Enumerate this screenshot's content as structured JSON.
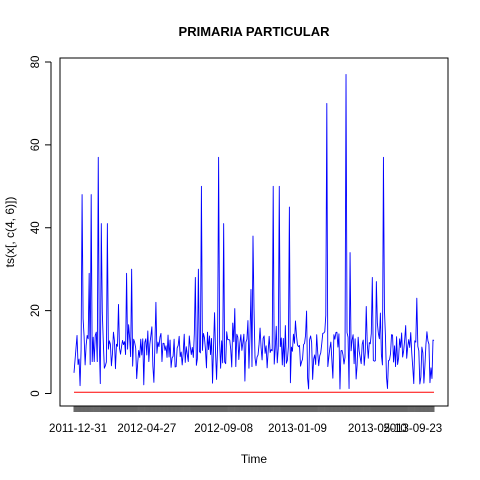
{
  "chart_data": {
    "type": "line",
    "title": "PRIMARIA PARTICULAR",
    "xlabel": "Time",
    "ylabel": "ts(x[, c(4, 6)])",
    "ylim": [
      0,
      80
    ],
    "yticks": [
      0,
      20,
      40,
      60,
      80
    ],
    "xlim": [
      0,
      356
    ],
    "x_tick_labels": [
      {
        "x": 4,
        "label": "2011-12-31"
      },
      {
        "x": 72,
        "label": "2012-04-27"
      },
      {
        "x": 148,
        "label": "2012-09-08"
      },
      {
        "x": 221,
        "label": "2013-01-09"
      },
      {
        "x": 300,
        "label": "2013-05-10"
      },
      {
        "x": 335,
        "label": "2013-09-23"
      }
    ],
    "grid": false,
    "legend": "none",
    "series": [
      {
        "color": "#0000ff",
        "peaks": [
          [
            8,
            48
          ],
          [
            15,
            29
          ],
          [
            17,
            48
          ],
          [
            24,
            57
          ],
          [
            27,
            41
          ],
          [
            33,
            41
          ],
          [
            52,
            29
          ],
          [
            57,
            30
          ],
          [
            120,
            28
          ],
          [
            123,
            30
          ],
          [
            126,
            50
          ],
          [
            143,
            57
          ],
          [
            148,
            41
          ],
          [
            177,
            38
          ],
          [
            197,
            50
          ],
          [
            203,
            50
          ],
          [
            213,
            45
          ],
          [
            250,
            70
          ],
          [
            269,
            77
          ],
          [
            273,
            34
          ],
          [
            295,
            28
          ],
          [
            299,
            27
          ],
          [
            306,
            57
          ]
        ]
      },
      {
        "color": "#ff0000",
        "values_constant": 0.3
      }
    ]
  }
}
